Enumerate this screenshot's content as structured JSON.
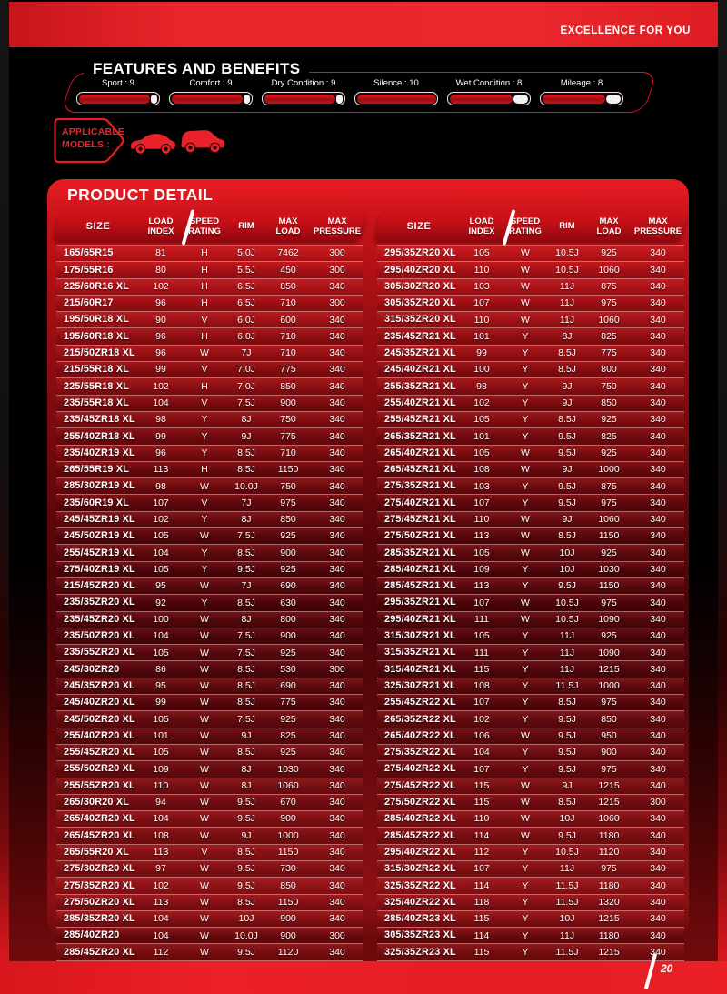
{
  "banner": {
    "tagline": "EXCELLENCE FOR YOU"
  },
  "features": {
    "title": "FEATURES AND BENEFITS",
    "max_rating": 10,
    "items": [
      {
        "text": "Sport : 9",
        "value": 9
      },
      {
        "text": "Comfort : 9",
        "value": 9
      },
      {
        "text": "Dry Condition : 9",
        "value": 9
      },
      {
        "text": "Silence : 10",
        "value": 10
      },
      {
        "text": "Wet Condition : 8",
        "value": 8
      },
      {
        "text": "Mileage : 8",
        "value": 8
      }
    ]
  },
  "applicable_models": {
    "label": "APPLICABLE\nMODELS :",
    "icons": [
      "sedan-car-icon",
      "suv-car-icon"
    ]
  },
  "product_detail": {
    "title": "PRODUCT DETAIL",
    "columns": [
      "SIZE",
      "LOAD\nINDEX",
      "SPEED\nRATING",
      "RIM",
      "MAX\nLOAD",
      "MAX\nPRESSURE"
    ],
    "left_rows": [
      [
        "165/65R15",
        "81",
        "H",
        "5.0J",
        "7462",
        "300"
      ],
      [
        "175/55R16",
        "80",
        "H",
        "5.5J",
        "450",
        "300"
      ],
      [
        "225/60R16 XL",
        "102",
        "H",
        "6.5J",
        "850",
        "340"
      ],
      [
        "215/60R17",
        "96",
        "H",
        "6.5J",
        "710",
        "300"
      ],
      [
        "195/50R18 XL",
        "90",
        "V",
        "6.0J",
        "600",
        "340"
      ],
      [
        "195/60R18 XL",
        "96",
        "H",
        "6.0J",
        "710",
        "340"
      ],
      [
        "215/50ZR18 XL",
        "96",
        "W",
        "7J",
        "710",
        "340"
      ],
      [
        "215/55R18 XL",
        "99",
        "V",
        "7.0J",
        "775",
        "340"
      ],
      [
        "225/55R18 XL",
        "102",
        "H",
        "7.0J",
        "850",
        "340"
      ],
      [
        "235/55R18 XL",
        "104",
        "V",
        "7.5J",
        "900",
        "340"
      ],
      [
        "235/45ZR18 XL",
        "98",
        "Y",
        "8J",
        "750",
        "340"
      ],
      [
        "255/40ZR18 XL",
        "99",
        "Y",
        "9J",
        "775",
        "340"
      ],
      [
        "235/40ZR19 XL",
        "96",
        "Y",
        "8.5J",
        "710",
        "340"
      ],
      [
        "265/55R19 XL",
        "113",
        "H",
        "8.5J",
        "1150",
        "340"
      ],
      [
        "285/30ZR19 XL",
        "98",
        "W",
        "10.0J",
        "750",
        "340"
      ],
      [
        "235/60R19 XL",
        "107",
        "V",
        "7J",
        "975",
        "340"
      ],
      [
        "245/45ZR19 XL",
        "102",
        "Y",
        "8J",
        "850",
        "340"
      ],
      [
        "245/50ZR19 XL",
        "105",
        "W",
        "7.5J",
        "925",
        "340"
      ],
      [
        "255/45ZR19 XL",
        "104",
        "Y",
        "8.5J",
        "900",
        "340"
      ],
      [
        "275/40ZR19 XL",
        "105",
        "Y",
        "9.5J",
        "925",
        "340"
      ],
      [
        "215/45ZR20 XL",
        "95",
        "W",
        "7J",
        "690",
        "340"
      ],
      [
        "235/35ZR20 XL",
        "92",
        "Y",
        "8.5J",
        "630",
        "340"
      ],
      [
        "235/45ZR20 XL",
        "100",
        "W",
        "8J",
        "800",
        "340"
      ],
      [
        "235/50ZR20 XL",
        "104",
        "W",
        "7.5J",
        "900",
        "340"
      ],
      [
        "235/55ZR20 XL",
        "105",
        "W",
        "7.5J",
        "925",
        "340"
      ],
      [
        "245/30ZR20",
        "86",
        "W",
        "8.5J",
        "530",
        "300"
      ],
      [
        "245/35ZR20 XL",
        "95",
        "W",
        "8.5J",
        "690",
        "340"
      ],
      [
        "245/40ZR20 XL",
        "99",
        "W",
        "8.5J",
        "775",
        "340"
      ],
      [
        "245/50ZR20 XL",
        "105",
        "W",
        "7.5J",
        "925",
        "340"
      ],
      [
        "255/40ZR20 XL",
        "101",
        "W",
        "9J",
        "825",
        "340"
      ],
      [
        "255/45ZR20 XL",
        "105",
        "W",
        "8.5J",
        "925",
        "340"
      ],
      [
        "255/50ZR20 XL",
        "109",
        "W",
        "8J",
        "1030",
        "340"
      ],
      [
        "255/55ZR20 XL",
        "110",
        "W",
        "8J",
        "1060",
        "340"
      ],
      [
        "265/30R20 XL",
        "94",
        "W",
        "9.5J",
        "670",
        "340"
      ],
      [
        "265/40ZR20 XL",
        "104",
        "W",
        "9.5J",
        "900",
        "340"
      ],
      [
        "265/45ZR20 XL",
        "108",
        "W",
        "9J",
        "1000",
        "340"
      ],
      [
        "265/55R20 XL",
        "113",
        "V",
        "8.5J",
        "1150",
        "340"
      ],
      [
        "275/30ZR20 XL",
        "97",
        "W",
        "9.5J",
        "730",
        "340"
      ],
      [
        "275/35ZR20 XL",
        "102",
        "W",
        "9.5J",
        "850",
        "340"
      ],
      [
        "275/50ZR20 XL",
        "113",
        "W",
        "8.5J",
        "1150",
        "340"
      ],
      [
        "285/35ZR20 XL",
        "104",
        "W",
        "10J",
        "900",
        "340"
      ],
      [
        "285/40ZR20",
        "104",
        "W",
        "10.0J",
        "900",
        "300"
      ],
      [
        "285/45ZR20 XL",
        "112",
        "W",
        "9.5J",
        "1120",
        "340"
      ]
    ],
    "right_rows": [
      [
        "295/35ZR20 XL",
        "105",
        "W",
        "10.5J",
        "925",
        "340"
      ],
      [
        "295/40ZR20 XL",
        "110",
        "W",
        "10.5J",
        "1060",
        "340"
      ],
      [
        "305/30ZR20 XL",
        "103",
        "W",
        "11J",
        "875",
        "340"
      ],
      [
        "305/35ZR20 XL",
        "107",
        "W",
        "11J",
        "975",
        "340"
      ],
      [
        "315/35ZR20 XL",
        "110",
        "W",
        "11J",
        "1060",
        "340"
      ],
      [
        "235/45ZR21 XL",
        "101",
        "Y",
        "8J",
        "825",
        "340"
      ],
      [
        "245/35ZR21 XL",
        "99",
        "Y",
        "8.5J",
        "775",
        "340"
      ],
      [
        "245/40ZR21 XL",
        "100",
        "Y",
        "8.5J",
        "800",
        "340"
      ],
      [
        "255/35ZR21 XL",
        "98",
        "Y",
        "9J",
        "750",
        "340"
      ],
      [
        "255/40ZR21 XL",
        "102",
        "Y",
        "9J",
        "850",
        "340"
      ],
      [
        "255/45ZR21 XL",
        "105",
        "Y",
        "8.5J",
        "925",
        "340"
      ],
      [
        "265/35ZR21 XL",
        "101",
        "Y",
        "9.5J",
        "825",
        "340"
      ],
      [
        "265/40ZR21 XL",
        "105",
        "W",
        "9.5J",
        "925",
        "340"
      ],
      [
        "265/45ZR21 XL",
        "108",
        "W",
        "9J",
        "1000",
        "340"
      ],
      [
        "275/35ZR21 XL",
        "103",
        "Y",
        "9.5J",
        "875",
        "340"
      ],
      [
        "275/40ZR21 XL",
        "107",
        "Y",
        "9.5J",
        "975",
        "340"
      ],
      [
        "275/45ZR21 XL",
        "110",
        "W",
        "9J",
        "1060",
        "340"
      ],
      [
        "275/50ZR21 XL",
        "113",
        "W",
        "8.5J",
        "1150",
        "340"
      ],
      [
        "285/35ZR21 XL",
        "105",
        "W",
        "10J",
        "925",
        "340"
      ],
      [
        "285/40ZR21 XL",
        "109",
        "Y",
        "10J",
        "1030",
        "340"
      ],
      [
        "285/45ZR21 XL",
        "113",
        "Y",
        "9.5J",
        "1150",
        "340"
      ],
      [
        "295/35ZR21 XL",
        "107",
        "W",
        "10.5J",
        "975",
        "340"
      ],
      [
        "295/40ZR21 XL",
        "111",
        "W",
        "10.5J",
        "1090",
        "340"
      ],
      [
        "315/30ZR21 XL",
        "105",
        "Y",
        "11J",
        "925",
        "340"
      ],
      [
        "315/35ZR21 XL",
        "111",
        "Y",
        "11J",
        "1090",
        "340"
      ],
      [
        "315/40ZR21 XL",
        "115",
        "Y",
        "11J",
        "1215",
        "340"
      ],
      [
        "325/30ZR21 XL",
        "108",
        "Y",
        "11.5J",
        "1000",
        "340"
      ],
      [
        "255/45ZR22 XL",
        "107",
        "Y",
        "8.5J",
        "975",
        "340"
      ],
      [
        "265/35ZR22 XL",
        "102",
        "Y",
        "9.5J",
        "850",
        "340"
      ],
      [
        "265/40ZR22 XL",
        "106",
        "W",
        "9.5J",
        "950",
        "340"
      ],
      [
        "275/35ZR22 XL",
        "104",
        "Y",
        "9.5J",
        "900",
        "340"
      ],
      [
        "275/40ZR22 XL",
        "107",
        "Y",
        "9.5J",
        "975",
        "340"
      ],
      [
        "275/45ZR22 XL",
        "115",
        "W",
        "9J",
        "1215",
        "340"
      ],
      [
        "275/50ZR22 XL",
        "115",
        "W",
        "8.5J",
        "1215",
        "300"
      ],
      [
        "285/40ZR22 XL",
        "110",
        "W",
        "10J",
        "1060",
        "340"
      ],
      [
        "285/45ZR22 XL",
        "114",
        "W",
        "9.5J",
        "1180",
        "340"
      ],
      [
        "295/40ZR22 XL",
        "112",
        "Y",
        "10.5J",
        "1120",
        "340"
      ],
      [
        "315/30ZR22 XL",
        "107",
        "Y",
        "11J",
        "975",
        "340"
      ],
      [
        "325/35ZR22 XL",
        "114",
        "Y",
        "11.5J",
        "1180",
        "340"
      ],
      [
        "325/40ZR22 XL",
        "118",
        "Y",
        "11.5J",
        "1320",
        "340"
      ],
      [
        "285/40ZR23 XL",
        "115",
        "Y",
        "10J",
        "1215",
        "340"
      ],
      [
        "305/35ZR23 XL",
        "114",
        "Y",
        "11J",
        "1180",
        "340"
      ],
      [
        "325/35ZR23 XL",
        "115",
        "Y",
        "11.5J",
        "1215",
        "340"
      ]
    ]
  },
  "footer": {
    "page_number": "20"
  },
  "colors": {
    "accent_red": "#e8262b",
    "panel_top_red": "#e71d23",
    "panel_dark_red": "#4a0408",
    "header_band_red": "#a80d13",
    "bar_fill_red": "#c4141a",
    "text_white": "#ffffff"
  }
}
